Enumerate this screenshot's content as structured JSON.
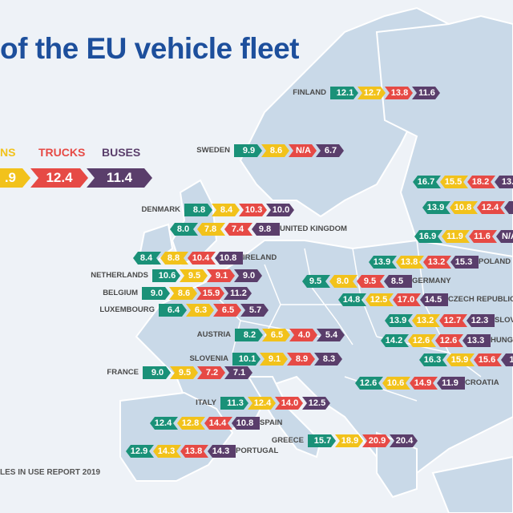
{
  "title": "of the EU vehicle fleet",
  "colors": {
    "cars": "#1a9178",
    "vans": "#f2c21b",
    "trucks": "#e64a45",
    "buses": "#5a3e6b",
    "title": "#1d4f9c",
    "land": "#c9d9e8"
  },
  "legend": {
    "vans_label": "NS",
    "trucks_label": "TRUCKS",
    "buses_label": "BUSES",
    "vans_value": ".9",
    "trucks_value": "12.4",
    "buses_value": "11.4"
  },
  "footer": "LES IN USE REPORT 2019",
  "countries": [
    {
      "name": "FINLAND",
      "values": [
        "12.1",
        "12.7",
        "13.8",
        "11.6"
      ]
    },
    {
      "name": "SWEDEN",
      "values": [
        "9.9",
        "8.6",
        "N/A",
        "6.7"
      ]
    },
    {
      "name": "",
      "values": [
        "16.7",
        "15.5",
        "18.2",
        "13."
      ]
    },
    {
      "name": "",
      "values": [
        "13.9",
        "10.8",
        "12.4",
        "1"
      ]
    },
    {
      "name": "",
      "values": [
        "16.9",
        "11.9",
        "11.6",
        "N/A"
      ]
    },
    {
      "name": "DENMARK",
      "values": [
        "8.8",
        "8.4",
        "10.3",
        "10.0"
      ]
    },
    {
      "name": "UNITED KINGDOM",
      "values": [
        "8.0",
        "7.8",
        "7.4",
        "9.8"
      ]
    },
    {
      "name": "IRELAND",
      "values": [
        "8.4",
        "8.8",
        "10.4",
        "10.8"
      ]
    },
    {
      "name": "NETHERLANDS",
      "values": [
        "10.6",
        "9.5",
        "9.1",
        "9.0"
      ]
    },
    {
      "name": "BELGIUM",
      "values": [
        "9.0",
        "8.6",
        "15.9",
        "11.2"
      ]
    },
    {
      "name": "LUXEMBOURG",
      "values": [
        "6.4",
        "6.3",
        "6.5",
        "5.7"
      ]
    },
    {
      "name": "POLAND",
      "values": [
        "13.9",
        "13.8",
        "13.2",
        "15.3"
      ]
    },
    {
      "name": "GERMANY",
      "values": [
        "9.5",
        "8.0",
        "9.5",
        "8.5"
      ]
    },
    {
      "name": "CZECH REPUBLIC",
      "values": [
        "14.8",
        "12.5",
        "17.0",
        "14.5"
      ]
    },
    {
      "name": "SLOVA",
      "values": [
        "13.9",
        "13.2",
        "12.7",
        "12.3"
      ]
    },
    {
      "name": "AUSTRIA",
      "values": [
        "8.2",
        "6.5",
        "4.0",
        "5.4"
      ]
    },
    {
      "name": "HUNGA",
      "values": [
        "14.2",
        "12.6",
        "12.6",
        "13.3"
      ]
    },
    {
      "name": "SLOVENIA",
      "values": [
        "10.1",
        "9.1",
        "8.9",
        "8.3"
      ]
    },
    {
      "name": "",
      "values": [
        "16.3",
        "15.9",
        "15.6",
        "16"
      ]
    },
    {
      "name": "FRANCE",
      "values": [
        "9.0",
        "9.5",
        "7.2",
        "7.1"
      ]
    },
    {
      "name": "CROATIA",
      "values": [
        "12.6",
        "10.6",
        "14.9",
        "11.9"
      ]
    },
    {
      "name": "ITALY",
      "values": [
        "11.3",
        "12.4",
        "14.0",
        "12.5"
      ]
    },
    {
      "name": "SPAIN",
      "values": [
        "12.4",
        "12.8",
        "14.4",
        "10.8"
      ]
    },
    {
      "name": "GREECE",
      "values": [
        "15.7",
        "18.9",
        "20.9",
        "20.4"
      ]
    },
    {
      "name": "PORTUGAL",
      "values": [
        "12.9",
        "14.3",
        "13.8",
        "14.3"
      ]
    }
  ]
}
